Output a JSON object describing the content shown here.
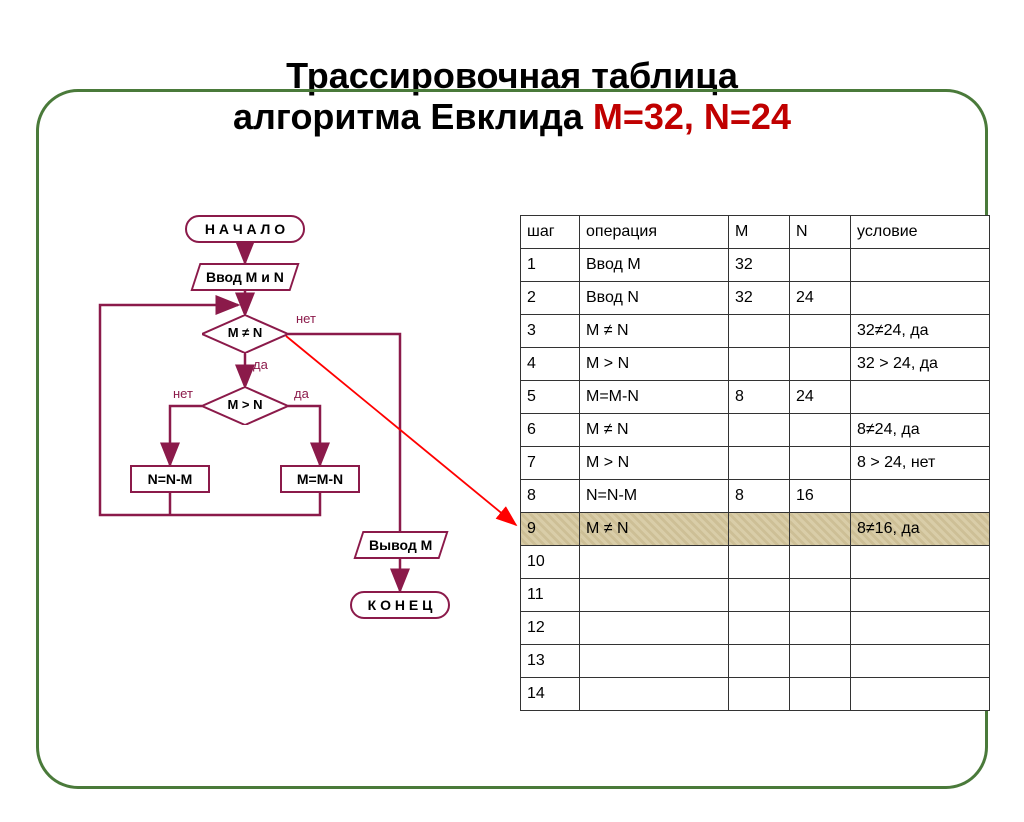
{
  "title": {
    "line1": "Трассировочная таблица",
    "line2_black": "алгоритма Евклида ",
    "line2_red": "M=32, N=24"
  },
  "flow": {
    "start": "Н А Ч А Л О",
    "input": "Ввод M и N",
    "dec1": "M ≠ N",
    "dec2": "M > N",
    "left": "N=N-M",
    "right": "M=M-N",
    "output": "Вывод M",
    "end": "К О Н Е Ц",
    "lbl_no": "нет",
    "lbl_yes": "да"
  },
  "table": {
    "header": [
      "шаг",
      "операция",
      "M",
      "N",
      "условие"
    ],
    "rows": [
      {
        "step": "1",
        "op": "Ввод M",
        "m": "32",
        "n": "",
        "cond": "",
        "hl": false
      },
      {
        "step": "2",
        "op": "Ввод N",
        "m": "32",
        "n": "24",
        "cond": "",
        "hl": false
      },
      {
        "step": "3",
        "op": "M ≠ N",
        "m": "",
        "n": "",
        "cond": "32≠24, да",
        "hl": false
      },
      {
        "step": "4",
        "op": "M > N",
        "m": "",
        "n": "",
        "cond": "32 > 24, да",
        "hl": false
      },
      {
        "step": "5",
        "op": "M=M-N",
        "m": "8",
        "n": "24",
        "cond": "",
        "hl": false
      },
      {
        "step": "6",
        "op": "M ≠ N",
        "m": "",
        "n": "",
        "cond": "8≠24, да",
        "hl": false
      },
      {
        "step": "7",
        "op": "M > N",
        "m": "",
        "n": "",
        "cond": "8 > 24, нет",
        "hl": false
      },
      {
        "step": "8",
        "op": "N=N-M",
        "m": "8",
        "n": "16",
        "cond": "",
        "hl": false
      },
      {
        "step": "9",
        "op": "M ≠ N",
        "m": "",
        "n": "",
        "cond": "8≠16, да",
        "hl": true
      },
      {
        "step": "10",
        "op": "",
        "m": "",
        "n": "",
        "cond": "",
        "hl": false
      },
      {
        "step": "11",
        "op": "",
        "m": "",
        "n": "",
        "cond": "",
        "hl": false
      },
      {
        "step": "12",
        "op": "",
        "m": "",
        "n": "",
        "cond": "",
        "hl": false
      },
      {
        "step": "13",
        "op": "",
        "m": "",
        "n": "",
        "cond": "",
        "hl": false
      },
      {
        "step": "14",
        "op": "",
        "m": "",
        "n": "",
        "cond": "",
        "hl": false
      }
    ]
  },
  "colors": {
    "border": "#8b1a4a",
    "arrow_red": "#ff0000"
  }
}
